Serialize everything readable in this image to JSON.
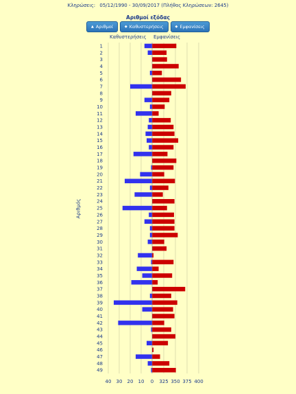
{
  "header": {
    "draws_label": "Κληρώσεις:",
    "range": "05/12/1990 - 30/09/2017",
    "count_note": "(Πλήθος Κληρώσεων: 2645)"
  },
  "controls": {
    "title": "Αριθμοί εξόδας",
    "buttons": [
      "Αριθμοί",
      "Καθυστερήσεις",
      "Εμφανίσεις"
    ]
  },
  "chart_data": {
    "type": "bar",
    "left_series_label": "Καθυστερήσεις",
    "right_series_label": "Εμφανίσεις",
    "ylabel": "Αριθμός",
    "categories": [
      "1",
      "2",
      "3",
      "4",
      "5",
      "6",
      "7",
      "8",
      "9",
      "10",
      "11",
      "12",
      "13",
      "14",
      "15",
      "16",
      "17",
      "18",
      "19",
      "20",
      "21",
      "22",
      "23",
      "24",
      "25",
      "26",
      "27",
      "28",
      "29",
      "30",
      "31",
      "32",
      "33",
      "34",
      "35",
      "36",
      "37",
      "38",
      "39",
      "40",
      "41",
      "42",
      "43",
      "44",
      "45",
      "46",
      "47",
      "48",
      "49"
    ],
    "left_ticks": [
      "40",
      "30",
      "20",
      "10",
      "0"
    ],
    "right_ticks": [
      "325",
      "350",
      "375",
      "400"
    ],
    "delays": [
      7,
      4,
      0,
      0,
      2,
      0,
      20,
      0,
      7,
      2,
      15,
      3,
      4,
      6,
      5,
      3,
      17,
      0,
      1,
      11,
      25,
      2,
      16,
      0,
      27,
      3,
      7,
      2,
      2,
      4,
      0,
      13,
      1,
      14,
      9,
      19,
      0,
      2,
      35,
      9,
      0,
      31,
      1,
      0,
      5,
      0,
      15,
      4,
      1
    ],
    "appearances": [
      352,
      331,
      332,
      357,
      321,
      362,
      372,
      341,
      337,
      327,
      314,
      340,
      346,
      348,
      356,
      346,
      333,
      352,
      346,
      326,
      349,
      335,
      323,
      348,
      332,
      347,
      348,
      348,
      355,
      326,
      331,
      303,
      346,
      314,
      343,
      312,
      371,
      341,
      354,
      345,
      348,
      326,
      341,
      350,
      334,
      303,
      317,
      337,
      351
    ],
    "left_max": 40,
    "right_range": [
      300,
      400
    ],
    "colors": {
      "delays": "#3232ee",
      "appearances": "#cc0000",
      "text": "#1b3a8a"
    }
  }
}
